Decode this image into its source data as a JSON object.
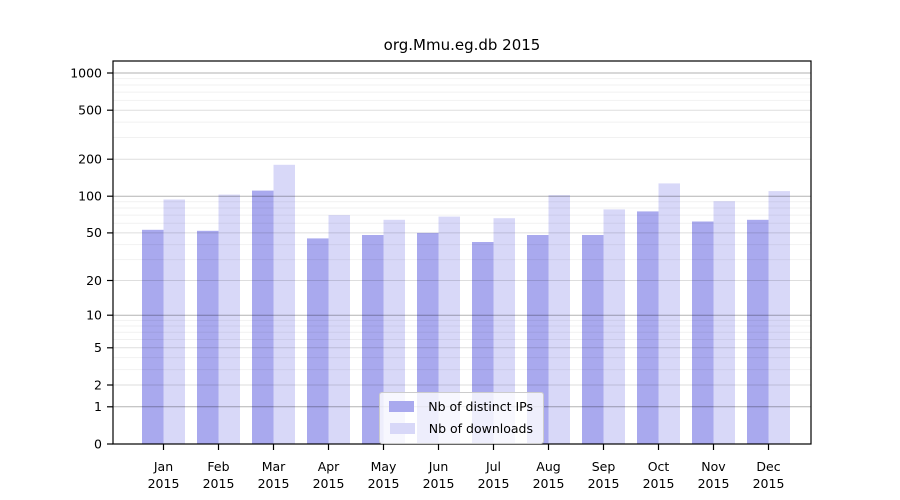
{
  "chart_data": {
    "type": "bar",
    "title": "org.Mmu.eg.db 2015",
    "year_label": "2015",
    "categories": [
      "Jan",
      "Feb",
      "Mar",
      "Apr",
      "May",
      "Jun",
      "Jul",
      "Aug",
      "Sep",
      "Oct",
      "Nov",
      "Dec"
    ],
    "series": [
      {
        "name": "Nb of distinct IPs",
        "color": "#a9a9ee",
        "values": [
          53,
          52,
          111,
          45,
          48,
          50,
          42,
          48,
          48,
          75,
          62,
          64
        ]
      },
      {
        "name": "Nb of downloads",
        "color": "#d8d8f8",
        "values": [
          94,
          103,
          180,
          70,
          64,
          68,
          66,
          102,
          78,
          127,
          91,
          110
        ]
      }
    ],
    "yscale": "log1p",
    "yticks": [
      0,
      1,
      2,
      5,
      10,
      20,
      50,
      100,
      200,
      500,
      1000
    ],
    "ylim": [
      0,
      1250
    ],
    "xlabel": "",
    "ylabel": "",
    "grid": "on",
    "legend_position": "lower center",
    "bar_grouping": "paired per month",
    "background": "#ffffff"
  }
}
